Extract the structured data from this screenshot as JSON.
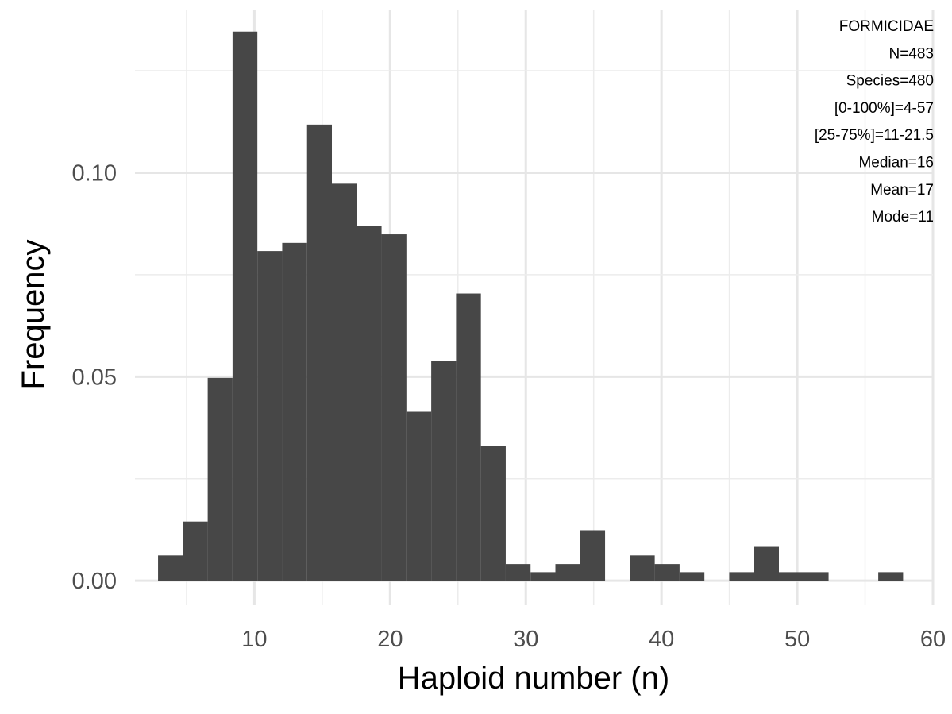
{
  "chart_data": {
    "type": "bar",
    "xlabel": "Haploid number (n)",
    "ylabel": "Frequency",
    "xlim": [
      1.2,
      60
    ],
    "ylim": [
      -0.006,
      0.14
    ],
    "x_ticks": [
      10,
      20,
      30,
      40,
      50,
      60
    ],
    "x_tick_labels": [
      "10",
      "20",
      "30",
      "40",
      "50",
      "60"
    ],
    "y_ticks": [
      0.0,
      0.05,
      0.1
    ],
    "y_tick_labels": [
      "0.00",
      "0.05",
      "0.10"
    ],
    "grid": true,
    "bin_width": 1.83,
    "bins": [
      {
        "x_start": 2.9,
        "x_end": 4.73,
        "frequency": 0.0062
      },
      {
        "x_start": 4.73,
        "x_end": 6.56,
        "frequency": 0.0145
      },
      {
        "x_start": 6.56,
        "x_end": 8.39,
        "frequency": 0.0497
      },
      {
        "x_start": 8.39,
        "x_end": 10.22,
        "frequency": 0.1346
      },
      {
        "x_start": 10.22,
        "x_end": 12.05,
        "frequency": 0.0808
      },
      {
        "x_start": 12.05,
        "x_end": 13.88,
        "frequency": 0.0828
      },
      {
        "x_start": 13.88,
        "x_end": 15.71,
        "frequency": 0.1118
      },
      {
        "x_start": 15.71,
        "x_end": 17.54,
        "frequency": 0.0973
      },
      {
        "x_start": 17.54,
        "x_end": 19.37,
        "frequency": 0.087
      },
      {
        "x_start": 19.37,
        "x_end": 21.2,
        "frequency": 0.0849
      },
      {
        "x_start": 21.2,
        "x_end": 23.03,
        "frequency": 0.0414
      },
      {
        "x_start": 23.03,
        "x_end": 24.86,
        "frequency": 0.0538
      },
      {
        "x_start": 24.86,
        "x_end": 26.69,
        "frequency": 0.0704
      },
      {
        "x_start": 26.69,
        "x_end": 28.52,
        "frequency": 0.0331
      },
      {
        "x_start": 28.52,
        "x_end": 30.35,
        "frequency": 0.0041
      },
      {
        "x_start": 30.35,
        "x_end": 32.18,
        "frequency": 0.0021
      },
      {
        "x_start": 32.18,
        "x_end": 34.01,
        "frequency": 0.0041
      },
      {
        "x_start": 34.01,
        "x_end": 35.84,
        "frequency": 0.0124
      },
      {
        "x_start": 35.84,
        "x_end": 37.67,
        "frequency": 0.0
      },
      {
        "x_start": 37.67,
        "x_end": 39.5,
        "frequency": 0.0062
      },
      {
        "x_start": 39.5,
        "x_end": 41.33,
        "frequency": 0.0041
      },
      {
        "x_start": 41.33,
        "x_end": 43.16,
        "frequency": 0.0021
      },
      {
        "x_start": 43.16,
        "x_end": 44.99,
        "frequency": 0.0
      },
      {
        "x_start": 44.99,
        "x_end": 46.82,
        "frequency": 0.0021
      },
      {
        "x_start": 46.82,
        "x_end": 48.65,
        "frequency": 0.0083
      },
      {
        "x_start": 48.65,
        "x_end": 50.48,
        "frequency": 0.0021
      },
      {
        "x_start": 50.48,
        "x_end": 52.31,
        "frequency": 0.0021
      },
      {
        "x_start": 52.31,
        "x_end": 54.14,
        "frequency": 0.0
      },
      {
        "x_start": 54.14,
        "x_end": 55.97,
        "frequency": 0.0
      },
      {
        "x_start": 55.97,
        "x_end": 57.8,
        "frequency": 0.0021
      }
    ],
    "annotation_lines": [
      "FORMICIDAE",
      "N=483",
      "Species=480",
      "[0-100%]=4-57",
      "[25-75%]=11-21.5",
      "Median=16",
      "Mean=17",
      "Mode=11"
    ],
    "colors": {
      "bar": "#474747",
      "grid": "#e6e6e6",
      "tick_text": "#4d4d4d"
    }
  }
}
